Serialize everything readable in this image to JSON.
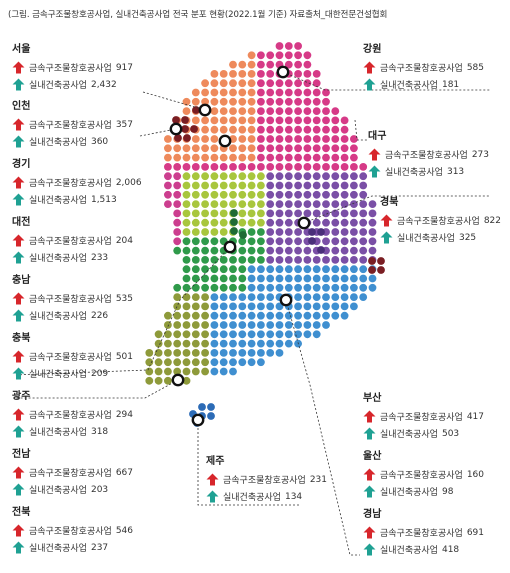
{
  "caption": "(그림. 금속구조물창호공사업, 실내건축공사업 전국 분포 현황(2022.1월 기준) 자료출처_대한전문건설협회",
  "legend_labels": {
    "metal": "금속구조물창호공사업",
    "interior": "실내건축공사업"
  },
  "colors": {
    "metal_arrow": "#d7262b",
    "interior_arrow": "#1fa193",
    "seoul": "#7a1e23",
    "gyeonggi": "#ee8a5c",
    "gangwon": "#d63a87",
    "chungbuk": "#a8c63d",
    "chungnam": "#cc3e8f",
    "daejeon": "#2f9a4a",
    "gyeongbuk": "#7a4fa6",
    "jeonbuk": "#2f9a4a",
    "jeonnam": "#8e9a3a",
    "gyeongnam": "#3f8fd0",
    "jeju": "#2c6bb6"
  },
  "regions": {
    "seoul": {
      "name": "서울",
      "metal": "917",
      "interior": "2,432"
    },
    "incheon": {
      "name": "인천",
      "metal": "357",
      "interior": "360"
    },
    "gyeonggi": {
      "name": "경기",
      "metal": "2,006",
      "interior": "1,513"
    },
    "daejeon": {
      "name": "대전",
      "metal": "204",
      "interior": "233"
    },
    "chungnam": {
      "name": "충남",
      "metal": "535",
      "interior": "226"
    },
    "chungbuk": {
      "name": "충북",
      "metal": "501",
      "interior": "209"
    },
    "gwangju": {
      "name": "광주",
      "metal": "294",
      "interior": "318"
    },
    "jeonnam": {
      "name": "전남",
      "metal": "667",
      "interior": "203"
    },
    "jeonbuk": {
      "name": "전북",
      "metal": "546",
      "interior": "237"
    },
    "gangwon": {
      "name": "강원",
      "metal": "585",
      "interior": "181"
    },
    "daegu": {
      "name": "대구",
      "metal": "273",
      "interior": "313"
    },
    "gyeongbuk": {
      "name": "경북",
      "metal": "822",
      "interior": "325"
    },
    "jeju": {
      "name": "제주",
      "metal": "231",
      "interior": "134"
    },
    "busan": {
      "name": "부산",
      "metal": "417",
      "interior": "503"
    },
    "ulsan": {
      "name": "울산",
      "metal": "160",
      "interior": "98"
    },
    "gyeongnam": {
      "name": "경남",
      "metal": "691",
      "interior": "418"
    }
  },
  "icons": {
    "metal": "up-arrow-icon",
    "interior": "up-arrow-icon"
  }
}
